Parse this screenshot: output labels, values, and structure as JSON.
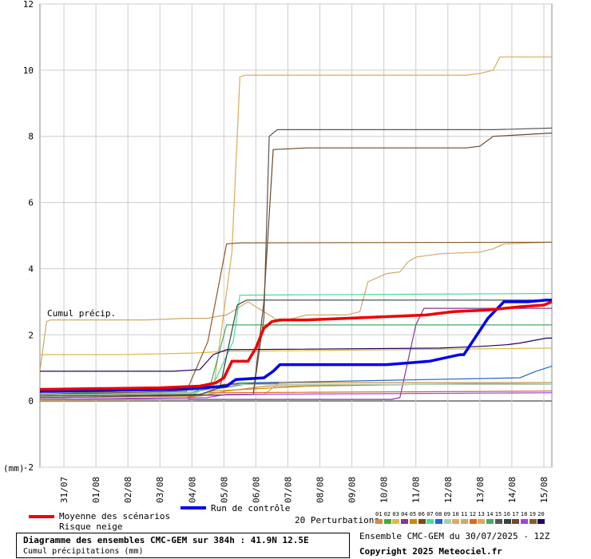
{
  "chart_data": {
    "type": "line",
    "title": "Diagramme des ensembles CMC-GEM sur 384h : 41.9N 12.5E",
    "subtitle": "Cumul précipitations (mm)",
    "annotation": "Cumul précip.",
    "y_unit_label": "(mm)",
    "ylim": [
      -2,
      12
    ],
    "yticks": [
      -2,
      0,
      2,
      4,
      6,
      8,
      10,
      12
    ],
    "ytick_labels": [
      "-2",
      "0",
      "2",
      "4",
      "6",
      "8",
      "10",
      "12"
    ],
    "x_labels": [
      "31/07",
      "01/08",
      "02/08",
      "03/08",
      "04/08",
      "05/08",
      "06/08",
      "07/08",
      "08/08",
      "09/08",
      "10/08",
      "11/08",
      "12/08",
      "13/08",
      "14/08",
      "15/08"
    ],
    "xlim": [
      0,
      384
    ],
    "grid": true,
    "control": {
      "name": "Run de contrôle",
      "color": "#0000ee",
      "x": [
        0,
        102,
        140,
        147,
        168,
        175,
        180,
        200,
        220,
        260,
        292,
        315,
        318,
        336,
        348,
        366,
        380,
        384
      ],
      "y": [
        0.3,
        0.35,
        0.45,
        0.65,
        0.7,
        0.9,
        1.1,
        1.1,
        1.1,
        1.1,
        1.2,
        1.4,
        1.4,
        2.5,
        3.0,
        3.0,
        3.05,
        3.05
      ]
    },
    "mean": {
      "name": "Moyenne des scénarios",
      "color": "#ee0000",
      "x": [
        0,
        90,
        120,
        132,
        138,
        144,
        156,
        162,
        168,
        174,
        180,
        200,
        230,
        260,
        290,
        310,
        336,
        360,
        378,
        384
      ],
      "y": [
        0.35,
        0.4,
        0.45,
        0.55,
        0.7,
        1.2,
        1.2,
        1.6,
        2.2,
        2.4,
        2.45,
        2.45,
        2.5,
        2.55,
        2.6,
        2.7,
        2.75,
        2.85,
        2.9,
        3.0
      ]
    },
    "perturbations": [
      {
        "label": "01",
        "color": "#dd8844",
        "x": [
          0,
          120,
          140,
          170,
          384
        ],
        "y": [
          0.1,
          0.15,
          0.3,
          0.45,
          0.55
        ]
      },
      {
        "label": "02",
        "color": "#44aa44",
        "x": [
          0,
          125,
          150,
          384
        ],
        "y": [
          0.2,
          0.4,
          0.55,
          0.55
        ]
      },
      {
        "label": "03",
        "color": "#ddbb44",
        "x": [
          0,
          6,
          60,
          115,
          140,
          384
        ],
        "y": [
          1.4,
          1.4,
          1.4,
          1.45,
          1.5,
          1.6
        ]
      },
      {
        "label": "04",
        "color": "#883399",
        "x": [
          0,
          264,
          270,
          276,
          282,
          288,
          384
        ],
        "y": [
          0.05,
          0.05,
          0.1,
          1.2,
          2.3,
          2.8,
          2.8
        ]
      },
      {
        "label": "05",
        "color": "#cc8800",
        "x": [
          0,
          110,
          130,
          200,
          280,
          384
        ],
        "y": [
          0.05,
          0.1,
          0.3,
          0.45,
          0.5,
          0.5
        ]
      },
      {
        "label": "06",
        "color": "#7a4a1a",
        "x": [
          0,
          120,
          138,
          190,
          300,
          384
        ],
        "y": [
          0.2,
          0.3,
          0.5,
          0.55,
          0.55,
          0.55
        ]
      },
      {
        "label": "07",
        "color": "#44dd99",
        "x": [
          0,
          115,
          130,
          145,
          150,
          384
        ],
        "y": [
          0.15,
          0.2,
          0.5,
          1.8,
          3.2,
          3.25
        ]
      },
      {
        "label": "08",
        "color": "#2266cc",
        "x": [
          0,
          130,
          160,
          360,
          372,
          384
        ],
        "y": [
          0.25,
          0.35,
          0.55,
          0.7,
          0.9,
          1.05
        ]
      },
      {
        "label": "09",
        "color": "#aaccbb",
        "x": [
          0,
          120,
          150,
          384
        ],
        "y": [
          0.2,
          0.3,
          0.5,
          0.5
        ]
      },
      {
        "label": "10",
        "color": "#ddaa66",
        "x": [
          0,
          168,
          180,
          384
        ],
        "y": [
          0.1,
          0.2,
          0.55,
          0.55
        ]
      },
      {
        "label": "11",
        "color": "#ccaa66",
        "x": [
          0,
          5,
          8,
          20,
          80,
          110,
          126,
          132,
          140,
          156,
          180,
          200,
          230,
          240,
          246,
          260,
          270,
          276,
          282,
          300,
          330,
          340,
          348,
          384
        ],
        "y": [
          0.9,
          2.4,
          2.45,
          2.45,
          2.45,
          2.5,
          2.5,
          2.55,
          2.6,
          3.0,
          2.4,
          2.6,
          2.6,
          2.7,
          3.6,
          3.85,
          3.9,
          4.2,
          4.35,
          4.45,
          4.5,
          4.6,
          4.75,
          4.8
        ]
      },
      {
        "label": "12",
        "color": "#dd6622",
        "x": [
          0,
          110,
          125,
          384
        ],
        "y": [
          0.05,
          0.1,
          0.25,
          0.3
        ]
      },
      {
        "label": "13",
        "color": "#ddaa55",
        "x": [
          0,
          110,
          130,
          144,
          150,
          154,
          160,
          200,
          250,
          320,
          330,
          340,
          345,
          350,
          384
        ],
        "y": [
          0.02,
          0.05,
          0.3,
          4.5,
          9.8,
          9.85,
          9.85,
          9.85,
          9.85,
          9.85,
          9.9,
          10.0,
          10.4,
          10.4,
          10.4
        ]
      },
      {
        "label": "14",
        "color": "#44aa66",
        "x": [
          0,
          115,
          128,
          140,
          150,
          384
        ],
        "y": [
          0.2,
          0.25,
          0.5,
          2.3,
          2.3,
          2.3
        ]
      },
      {
        "label": "15",
        "color": "#555555",
        "x": [
          0,
          160,
          168,
          172,
          178,
          200,
          320,
          330,
          340,
          384
        ],
        "y": [
          0.1,
          0.2,
          2.5,
          8.0,
          8.2,
          8.2,
          8.2,
          8.2,
          8.2,
          8.25
        ]
      },
      {
        "label": "16",
        "color": "#334444",
        "x": [
          0,
          120,
          135,
          148,
          155,
          384
        ],
        "y": [
          0.15,
          0.2,
          0.4,
          2.9,
          3.05,
          3.05
        ]
      },
      {
        "label": "17",
        "color": "#6a4a2a",
        "x": [
          0,
          160,
          168,
          175,
          200,
          250,
          300,
          310,
          320,
          330,
          340,
          384
        ],
        "y": [
          0.1,
          0.2,
          3.0,
          7.6,
          7.65,
          7.65,
          7.65,
          7.65,
          7.65,
          7.7,
          8.0,
          8.1
        ]
      },
      {
        "label": "18",
        "color": "#9944ee",
        "x": [
          0,
          125,
          140,
          384
        ],
        "y": [
          0.05,
          0.1,
          0.2,
          0.25
        ]
      },
      {
        "label": "19",
        "color": "#8b5a2b",
        "x": [
          0,
          110,
          126,
          140,
          150,
          384
        ],
        "y": [
          0.2,
          0.3,
          1.8,
          4.75,
          4.78,
          4.8
        ]
      },
      {
        "label": "20",
        "color": "#220066",
        "x": [
          0,
          10,
          60,
          100,
          120,
          130,
          140,
          300,
          330,
          350,
          360,
          380,
          384
        ],
        "y": [
          0.9,
          0.9,
          0.9,
          0.9,
          0.95,
          1.4,
          1.55,
          1.6,
          1.65,
          1.7,
          1.75,
          1.9,
          1.9
        ]
      }
    ]
  },
  "legend": {
    "mean_label": "Moyenne des scénarios",
    "snow_label": "Risque neige",
    "control_label": "Run de contrôle",
    "perturbations_label": "20 Perturbations",
    "snow_color": "#cccccc"
  },
  "footer": {
    "title": "Diagramme des ensembles CMC-GEM sur 384h : 41.9N 12.5E",
    "subtitle": "Cumul précipitations (mm)",
    "ensemble_info": "Ensemble CMC-GEM du 30/07/2025 - 12Z",
    "copyright": "Copyright 2025 Meteociel.fr"
  }
}
